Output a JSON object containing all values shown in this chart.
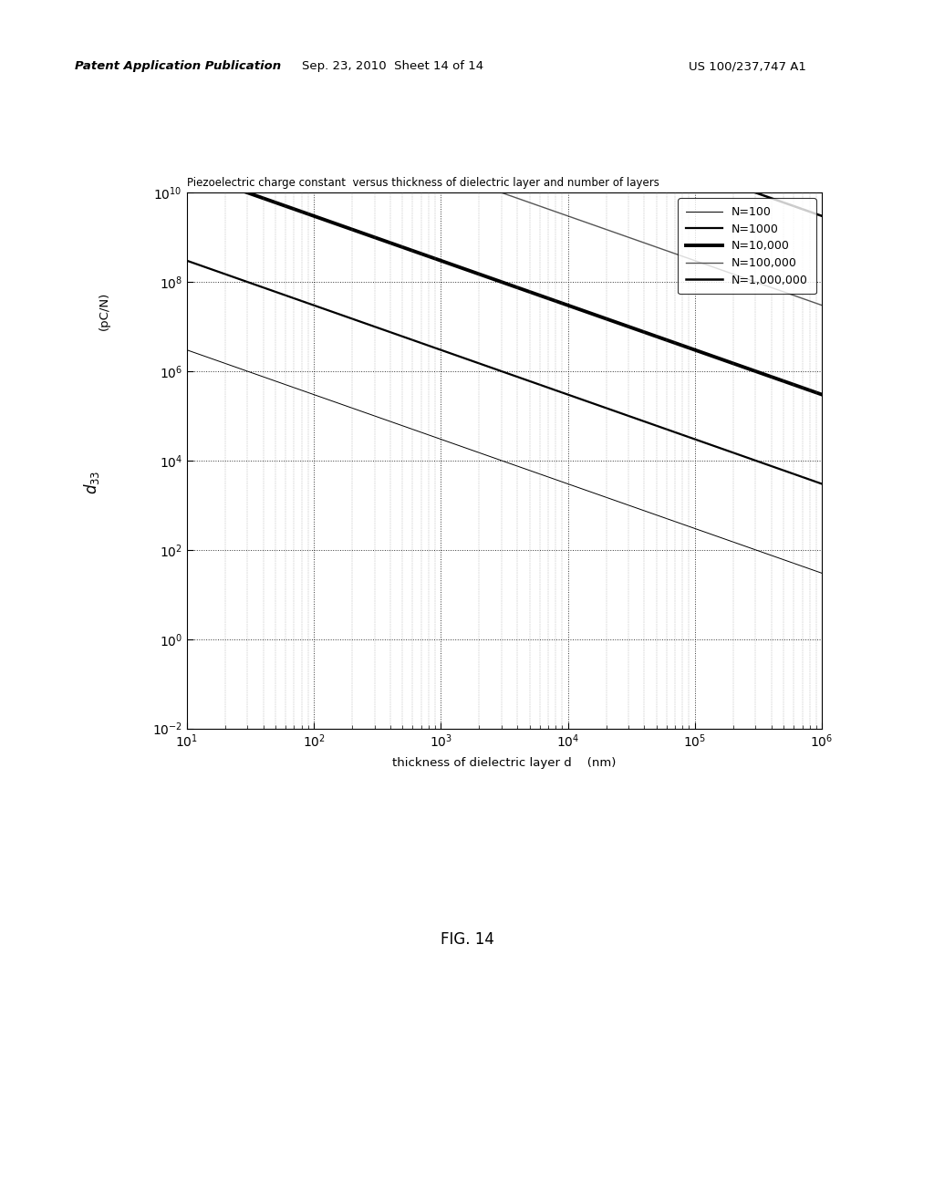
{
  "title": "Piezoelectric charge constant  versus thickness of dielectric layer and number of layers",
  "xlabel": "thickness of dielectric layer d    (nm)",
  "xmin": 10,
  "xmax": 1000000,
  "ymin": 0.01,
  "ymax": 10000000000,
  "fig_caption": "FIG. 14",
  "header_left": "Patent Application Publication",
  "header_center": "Sep. 23, 2010  Sheet 14 of 14",
  "header_right": "US 100/237,747 A1",
  "series": [
    {
      "N": 100,
      "label": "N=100",
      "lw": 0.7,
      "color": "#000000"
    },
    {
      "N": 1000,
      "label": "N=1000",
      "lw": 1.6,
      "color": "#000000"
    },
    {
      "N": 10000,
      "label": "N=10,000",
      "lw": 2.8,
      "color": "#000000"
    },
    {
      "N": 100000,
      "label": "N=100,000",
      "lw": 1.0,
      "color": "#555555"
    },
    {
      "N": 1000000,
      "label": "N=1,000,000",
      "lw": 1.8,
      "color": "#000000"
    }
  ],
  "C": 3000.0,
  "background_color": "#ffffff"
}
